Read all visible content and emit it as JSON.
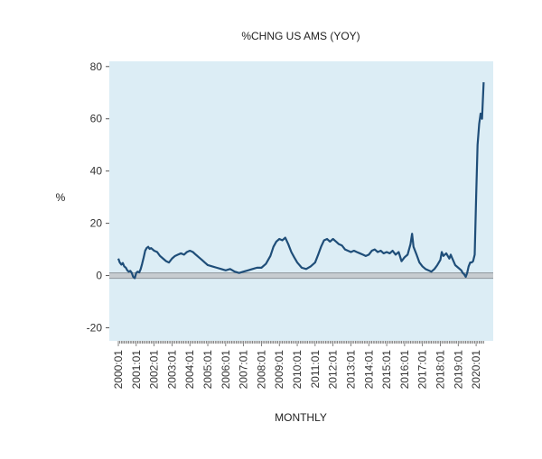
{
  "chart_data": {
    "type": "line",
    "title": "%CHNG US AMS (YOY)",
    "xlabel": "MONTHLY",
    "ylabel": "%",
    "ylim": [
      -25,
      82
    ],
    "yticks": [
      -20,
      0,
      20,
      40,
      60,
      80
    ],
    "xlim": [
      2000.0,
      2020.45
    ],
    "xtick_labels": [
      "2000:01",
      "2001:01",
      "2002:01",
      "2003:01",
      "2004:01",
      "2005:01",
      "2006:01",
      "2007:01",
      "2008:01",
      "2009:01",
      "2010:01",
      "2011:01",
      "2012:01",
      "2013:01",
      "2014:01",
      "2015:01",
      "2016:01",
      "2017:01",
      "2018:01",
      "2019:01",
      "2020:01"
    ],
    "zero_band": true,
    "plot_background": "#dcedf5",
    "line_color": "#1f4e79",
    "series": [
      {
        "x": [
          2000.0,
          2000.08,
          2000.17,
          2000.25,
          2000.33,
          2000.42,
          2000.5,
          2000.58,
          2000.67,
          2000.75,
          2000.83,
          2000.92,
          2001.0,
          2001.08,
          2001.17,
          2001.25,
          2001.33,
          2001.42,
          2001.5,
          2001.58,
          2001.67,
          2001.75,
          2001.83,
          2001.92,
          2002.0,
          2002.17,
          2002.33,
          2002.5,
          2002.67,
          2002.83,
          2003.0,
          2003.17,
          2003.33,
          2003.5,
          2003.67,
          2003.83,
          2004.0,
          2004.17,
          2004.33,
          2004.5,
          2004.67,
          2004.83,
          2005.0,
          2005.25,
          2005.5,
          2005.75,
          2006.0,
          2006.25,
          2006.5,
          2006.75,
          2007.0,
          2007.25,
          2007.5,
          2007.75,
          2008.0,
          2008.25,
          2008.5,
          2008.67,
          2008.83,
          2009.0,
          2009.17,
          2009.33,
          2009.5,
          2009.67,
          2009.83,
          2010.0,
          2010.25,
          2010.5,
          2010.75,
          2011.0,
          2011.17,
          2011.33,
          2011.5,
          2011.67,
          2011.83,
          2012.0,
          2012.17,
          2012.33,
          2012.5,
          2012.67,
          2012.83,
          2013.0,
          2013.17,
          2013.33,
          2013.5,
          2013.67,
          2013.83,
          2014.0,
          2014.17,
          2014.33,
          2014.5,
          2014.67,
          2014.83,
          2015.0,
          2015.17,
          2015.33,
          2015.5,
          2015.67,
          2015.83,
          2016.0,
          2016.17,
          2016.25,
          2016.33,
          2016.42,
          2016.5,
          2016.67,
          2016.83,
          2017.0,
          2017.17,
          2017.33,
          2017.5,
          2017.67,
          2017.83,
          2018.0,
          2018.08,
          2018.17,
          2018.33,
          2018.5,
          2018.58,
          2018.67,
          2018.83,
          2019.0,
          2019.17,
          2019.25,
          2019.33,
          2019.42,
          2019.5,
          2019.58,
          2019.67,
          2019.75,
          2019.83,
          2019.92,
          2020.0,
          2020.08,
          2020.17,
          2020.25,
          2020.33,
          2020.42
        ],
        "y": [
          6.5,
          5.0,
          4.2,
          4.8,
          3.5,
          3.0,
          2.0,
          1.5,
          1.8,
          1.0,
          -0.5,
          -1.0,
          1.0,
          1.5,
          1.2,
          2.5,
          4.5,
          7.0,
          9.5,
          10.5,
          11.0,
          10.2,
          10.5,
          10.0,
          9.5,
          9.0,
          7.5,
          6.5,
          5.5,
          5.0,
          6.5,
          7.5,
          8.0,
          8.5,
          8.0,
          9.0,
          9.5,
          9.0,
          8.0,
          7.0,
          6.0,
          5.0,
          4.0,
          3.5,
          3.0,
          2.5,
          2.0,
          2.5,
          1.5,
          1.0,
          1.5,
          2.0,
          2.5,
          3.0,
          3.0,
          4.5,
          7.5,
          11.0,
          13.0,
          14.0,
          13.5,
          14.5,
          12.0,
          9.0,
          7.0,
          5.0,
          3.0,
          2.5,
          3.5,
          5.0,
          8.0,
          11.0,
          13.5,
          14.0,
          13.0,
          14.0,
          13.0,
          12.0,
          11.5,
          10.0,
          9.5,
          9.0,
          9.5,
          9.0,
          8.5,
          8.0,
          7.5,
          8.0,
          9.5,
          10.0,
          9.0,
          9.5,
          8.5,
          9.0,
          8.5,
          9.5,
          8.0,
          9.0,
          5.5,
          7.0,
          8.0,
          10.0,
          12.0,
          16.0,
          11.0,
          8.0,
          5.0,
          3.5,
          2.5,
          2.0,
          1.5,
          2.5,
          4.0,
          6.0,
          9.0,
          7.5,
          8.5,
          6.5,
          8.0,
          6.5,
          4.0,
          3.0,
          2.0,
          1.0,
          0.5,
          -0.5,
          1.0,
          3.5,
          5.0,
          5.0,
          5.5,
          8.0,
          30.0,
          50.0,
          58.0,
          62.0,
          60.0,
          74.0
        ]
      }
    ]
  }
}
